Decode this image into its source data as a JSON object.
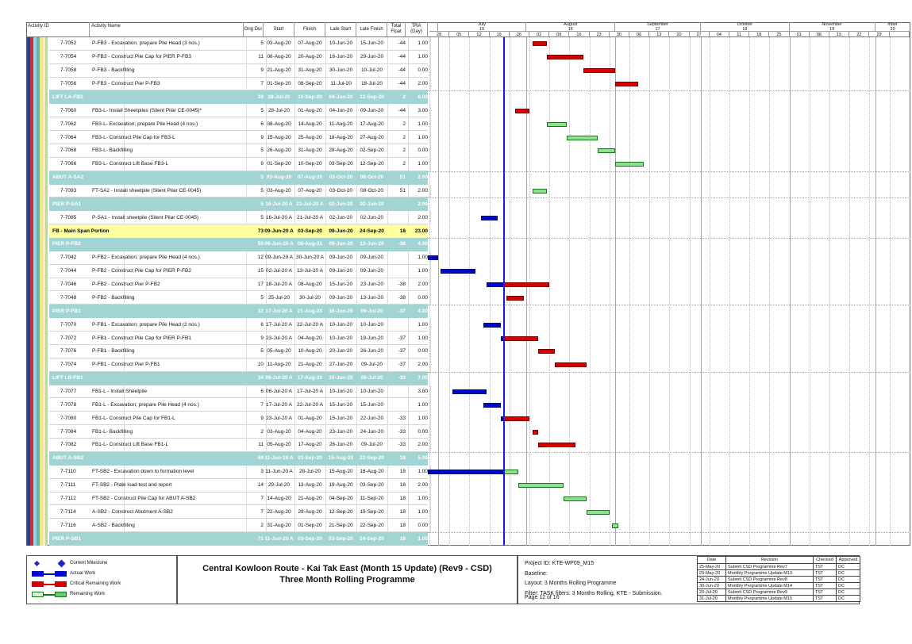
{
  "table": {
    "columns": [
      {
        "key": "id",
        "label": "Activity ID"
      },
      {
        "key": "name",
        "label": "Activity Name"
      },
      {
        "key": "dur",
        "label": "Orig Dur"
      },
      {
        "key": "start",
        "label": "Start"
      },
      {
        "key": "finish",
        "label": "Finish"
      },
      {
        "key": "ls",
        "label": "Late Start"
      },
      {
        "key": "lf",
        "label": "Late Finish"
      },
      {
        "key": "fl",
        "label": "Total\nFloat"
      },
      {
        "key": "tra",
        "label": "TRA\n(Day)"
      }
    ],
    "rows": [
      {
        "t": "task",
        "id": "7-7052",
        "name": "P-FB3 - Excavation; prepare Pile Head (3 nos.)",
        "dur": "5",
        "start": "03-Aug-20",
        "finish": "07-Aug-20",
        "ls": "10-Jun-20",
        "lf": "15-Jun-20",
        "fl": "-44",
        "tra": "1.00"
      },
      {
        "t": "task",
        "id": "7-7054",
        "name": "P-FB3 - Construct Pile Cap for PIER P-FB3",
        "dur": "11",
        "start": "08-Aug-20",
        "finish": "20-Aug-20",
        "ls": "16-Jun-20",
        "lf": "29-Jun-20",
        "fl": "-44",
        "tra": "1.00"
      },
      {
        "t": "task",
        "id": "7-7058",
        "name": "P-FB3 - Backfilling",
        "dur": "9",
        "start": "21-Aug-20",
        "finish": "31-Aug-20",
        "ls": "30-Jun-20",
        "lf": "10-Jul-20",
        "fl": "-44",
        "tra": "0.00"
      },
      {
        "t": "task",
        "id": "7-7056",
        "name": "P-FB3 - Construct Pier P-FB3",
        "dur": "7",
        "start": "01-Sep-20",
        "finish": "08-Sep-20",
        "ls": "11-Jul-20",
        "lf": "18-Jul-20",
        "fl": "-44",
        "tra": "2.00"
      },
      {
        "t": "group",
        "id": "",
        "name": "LIFT LA-FB3",
        "dur": "39",
        "start": "28-Jul-20",
        "finish": "10-Sep-20",
        "ls": "04-Jun-20",
        "lf": "12-Sep-20",
        "fl": "2",
        "tra": "6.00"
      },
      {
        "t": "task",
        "id": "7-7060",
        "name": "FB3-L- Install Sheetpiles (Silent Pilar CE-0045)*",
        "dur": "5",
        "start": "28-Jul-20",
        "finish": "01-Aug-20",
        "ls": "04-Jun-20",
        "lf": "09-Jun-20",
        "fl": "-44",
        "tra": "3.00"
      },
      {
        "t": "task",
        "id": "7-7062",
        "name": "FB3-L- Excavation; prepare Pile Head (4 nos.)",
        "dur": "6",
        "start": "08-Aug-20",
        "finish": "14-Aug-20",
        "ls": "11-Aug-20",
        "lf": "17-Aug-20",
        "fl": "2",
        "tra": "1.00"
      },
      {
        "t": "task",
        "id": "7-7064",
        "name": "FB3-L- Construct Pile Cap for FB3-L",
        "dur": "9",
        "start": "15-Aug-20",
        "finish": "25-Aug-20",
        "ls": "18-Aug-20",
        "lf": "27-Aug-20",
        "fl": "2",
        "tra": "1.00"
      },
      {
        "t": "task",
        "id": "7-7068",
        "name": "FB3-L- Backfilling",
        "dur": "5",
        "start": "26-Aug-20",
        "finish": "31-Aug-20",
        "ls": "28-Aug-20",
        "lf": "02-Sep-20",
        "fl": "2",
        "tra": "0.00"
      },
      {
        "t": "task",
        "id": "7-7066",
        "name": "FB3-L- Construct Lift Base FB3-L",
        "dur": "9",
        "start": "01-Sep-20",
        "finish": "10-Sep-20",
        "ls": "03-Sep-20",
        "lf": "12-Sep-20",
        "fl": "2",
        "tra": "1.00"
      },
      {
        "t": "group",
        "id": "",
        "name": "ABUT A-SA2",
        "dur": "5",
        "start": "03-Aug-20",
        "finish": "07-Aug-20",
        "ls": "03-Oct-20",
        "lf": "08-Oct-20",
        "fl": "51",
        "tra": "2.00"
      },
      {
        "t": "task",
        "id": "7-7093",
        "name": "FT-SA2 - Install sheetpile (Silent Pilar CE-0045)",
        "dur": "5",
        "start": "03-Aug-20",
        "finish": "07-Aug-20",
        "ls": "03-Oct-20",
        "lf": "08-Oct-20",
        "fl": "51",
        "tra": "2.00"
      },
      {
        "t": "group",
        "id": "",
        "name": "PIER P-SA1",
        "dur": "5",
        "start": "16-Jul-20 A",
        "finish": "21-Jul-20 A",
        "ls": "02-Jun-20",
        "lf": "02-Jun-20",
        "fl": "",
        "tra": "2.00"
      },
      {
        "t": "task",
        "id": "7-7085",
        "name": "P-SA1 - Install sheetpile (Silent Pilar CE-0045)",
        "dur": "5",
        "start": "16-Jul-20 A",
        "finish": "21-Jul-20 A",
        "ls": "02-Jun-20",
        "lf": "02-Jun-20",
        "fl": "",
        "tra": "2.00"
      },
      {
        "t": "summary",
        "id": "",
        "name": "FB - Main Span Portion",
        "dur": "73",
        "start": "09-Jun-20 A",
        "finish": "03-Sep-20",
        "ls": "09-Jun-20",
        "lf": "24-Sep-20",
        "fl": "18",
        "tra": "23.00"
      },
      {
        "t": "group",
        "id": "",
        "name": "PIER P-FB2",
        "dur": "50",
        "start": "09-Jun-20 A",
        "finish": "08-Aug-20",
        "ls": "09-Jun-20",
        "lf": "13-Jun-20",
        "fl": "-38",
        "tra": "4.00"
      },
      {
        "t": "task",
        "id": "7-7042",
        "name": "P-FB2 - Excavation; prepare Pile Head (4 nos.)",
        "dur": "12",
        "start": "09-Jun-20 A",
        "finish": "30-Jun-20 A",
        "ls": "09-Jun-20",
        "lf": "09-Jun-20",
        "fl": "",
        "tra": "1.00"
      },
      {
        "t": "task",
        "id": "7-7044",
        "name": "P-FB2 - Construct Pile Cap for PIER P-FB2",
        "dur": "15",
        "start": "02-Jul-20 A",
        "finish": "13-Jul-20 A",
        "ls": "09-Jun-20",
        "lf": "09-Jun-20",
        "fl": "",
        "tra": "1.00"
      },
      {
        "t": "task",
        "id": "7-7046",
        "name": "P-FB2 - Construct Pier P-FB2",
        "dur": "17",
        "start": "18-Jul-20 A",
        "finish": "08-Aug-20",
        "ls": "15-Jun-20",
        "lf": "23-Jun-20",
        "fl": "-38",
        "tra": "2.00"
      },
      {
        "t": "task",
        "id": "7-7048",
        "name": "P-FB2 - Backfilling",
        "dur": "5",
        "start": "25-Jul-20",
        "finish": "30-Jul-20",
        "ls": "09-Jun-20",
        "lf": "13-Jun-20",
        "fl": "-38",
        "tra": "0.00"
      },
      {
        "t": "group",
        "id": "",
        "name": "PIER P-FB1",
        "dur": "32",
        "start": "17-Jul-20 A",
        "finish": "21-Aug-20",
        "ls": "10-Jun-20",
        "lf": "09-Jul-20",
        "fl": "-37",
        "tra": "4.00"
      },
      {
        "t": "task",
        "id": "7-7070",
        "name": "P-FB1 - Excavation; prepare Pile Head (2 nos.)",
        "dur": "6",
        "start": "17-Jul-20 A",
        "finish": "22-Jul-20 A",
        "ls": "10-Jun-20",
        "lf": "10-Jun-20",
        "fl": "",
        "tra": "1.00"
      },
      {
        "t": "task",
        "id": "7-7072",
        "name": "P-FB1 - Construct Pile Cap for PIER P-FB1",
        "dur": "9",
        "start": "23-Jul-20 A",
        "finish": "04-Aug-20",
        "ls": "10-Jun-20",
        "lf": "19-Jun-20",
        "fl": "-37",
        "tra": "1.00"
      },
      {
        "t": "task",
        "id": "7-7076",
        "name": "P-FB1 - Backfilling",
        "dur": "5",
        "start": "05-Aug-20",
        "finish": "10-Aug-20",
        "ls": "20-Jun-20",
        "lf": "26-Jun-20",
        "fl": "-37",
        "tra": "0.00"
      },
      {
        "t": "task",
        "id": "7-7074",
        "name": "P-FB1 - Construct Pier P-FB1",
        "dur": "10",
        "start": "11-Aug-20",
        "finish": "21-Aug-20",
        "ls": "27-Jun-20",
        "lf": "09-Jul-20",
        "fl": "-37",
        "tra": "2.00"
      },
      {
        "t": "group",
        "id": "",
        "name": "LIFT LB-FB1",
        "dur": "34",
        "start": "06-Jul-20 A",
        "finish": "17-Aug-20",
        "ls": "10-Jun-20",
        "lf": "09-Jul-20",
        "fl": "-33",
        "tra": "7.00"
      },
      {
        "t": "task",
        "id": "7-7077",
        "name": "FB1-L - Install Sheetpile",
        "dur": "6",
        "start": "06-Jul-20 A",
        "finish": "17-Jul-20 A",
        "ls": "10-Jun-20",
        "lf": "10-Jun-20",
        "fl": "",
        "tra": "3.00"
      },
      {
        "t": "task",
        "id": "7-7078",
        "name": "FB1-L - Excavation; prepare Pile Head (4 nos.)",
        "dur": "7",
        "start": "17-Jul-20 A",
        "finish": "22-Jul-20 A",
        "ls": "15-Jun-20",
        "lf": "15-Jun-20",
        "fl": "",
        "tra": "1.00"
      },
      {
        "t": "task",
        "id": "7-7080",
        "name": "FB1-L- Construct Pile Cap for FB1-L",
        "dur": "9",
        "start": "23-Jul-20 A",
        "finish": "01-Aug-20",
        "ls": "15-Jun-20",
        "lf": "22-Jun-20",
        "fl": "-33",
        "tra": "1.00"
      },
      {
        "t": "task",
        "id": "7-7084",
        "name": "FB1-L- Backfilling",
        "dur": "2",
        "start": "03-Aug-20",
        "finish": "04-Aug-20",
        "ls": "23-Jun-20",
        "lf": "24-Jun-20",
        "fl": "-33",
        "tra": "0.00"
      },
      {
        "t": "task",
        "id": "7-7082",
        "name": "FB1-L- Construct Lift Base FB1-L",
        "dur": "11",
        "start": "05-Aug-20",
        "finish": "17-Aug-20",
        "ls": "26-Jun-20",
        "lf": "09-Jul-20",
        "fl": "-33",
        "tra": "2.00"
      },
      {
        "t": "group",
        "id": "",
        "name": "ABUT A-SB2",
        "dur": "69",
        "start": "11-Jun-20 A",
        "finish": "01-Sep-20",
        "ls": "15-Aug-20",
        "lf": "22-Sep-20",
        "fl": "18",
        "tra": "5.00"
      },
      {
        "t": "task",
        "id": "7-7110",
        "name": "FT-SB2 - Excavation down to formation level",
        "dur": "3",
        "start": "11-Jun-20 A",
        "finish": "28-Jul-20",
        "ls": "15-Aug-20",
        "lf": "18-Aug-20",
        "fl": "18",
        "tra": "1.00"
      },
      {
        "t": "task",
        "id": "7-7111",
        "name": "FT-SB2 - Plate load test and report",
        "dur": "14",
        "start": "29-Jul-20",
        "finish": "13-Aug-20",
        "ls": "19-Aug-20",
        "lf": "03-Sep-20",
        "fl": "18",
        "tra": "2.00"
      },
      {
        "t": "task",
        "id": "7-7112",
        "name": "FT-SB2 - Construct Pile Cap for ABUT A-SB2",
        "dur": "7",
        "start": "14-Aug-20",
        "finish": "21-Aug-20",
        "ls": "04-Sep-20",
        "lf": "11-Sep-20",
        "fl": "18",
        "tra": "1.00"
      },
      {
        "t": "task",
        "id": "7-7114",
        "name": "A-SB2 - Construct Abutment A-SB2",
        "dur": "7",
        "start": "22-Aug-20",
        "finish": "29-Aug-20",
        "ls": "12-Sep-20",
        "lf": "19-Sep-20",
        "fl": "18",
        "tra": "1.00"
      },
      {
        "t": "task",
        "id": "7-7116",
        "name": "A-SB2 - Backfilling",
        "dur": "2",
        "start": "31-Aug-20",
        "finish": "01-Sep-20",
        "ls": "21-Sep-20",
        "lf": "22-Sep-20",
        "fl": "18",
        "tra": "0.00"
      },
      {
        "t": "group",
        "id": "",
        "name": "PIER P-SB1",
        "dur": "71",
        "start": "11-Jun-20 A",
        "finish": "03-Sep-20",
        "ls": "03-Sep-20",
        "lf": "24-Sep-20",
        "fl": "18",
        "tra": "1.00"
      }
    ]
  },
  "timeline": {
    "window_start": "28-Jun-20",
    "data_date": "24-Jul-20",
    "months": [
      {
        "name": "",
        "num": ""
      },
      {
        "name": "July",
        "num": "15"
      },
      {
        "name": "August",
        "num": "16"
      },
      {
        "name": "September",
        "num": "17"
      },
      {
        "name": "October",
        "num": "18"
      },
      {
        "name": "November",
        "num": "19"
      },
      {
        "name": "mber",
        "num": "20"
      }
    ],
    "weeks": [
      "28",
      "05",
      "12",
      "19",
      "26",
      "02",
      "09",
      "16",
      "23",
      "30",
      "06",
      "13",
      "20",
      "27",
      "04",
      "11",
      "18",
      "25",
      "01",
      "08",
      "15",
      "22",
      "29",
      ""
    ]
  },
  "legend": [
    {
      "type": "milestone",
      "label": "Current Milestone"
    },
    {
      "type": "actual",
      "label": "Actual Work"
    },
    {
      "type": "critical",
      "label": "Critical Remaining Work"
    },
    {
      "type": "remaining",
      "label": "Remaining Work"
    }
  ],
  "title": {
    "line1": "Central Kowloon Route - Kai Tak East (Month 15 Update) (Rev9 - CSD)",
    "line2": "Three Month Rolling Programme"
  },
  "info": {
    "project_id": "Project ID: KTE-WP09_M15",
    "baseline": "Baseline:",
    "layout": "Layout: 3 Months Rolling Programme",
    "filter": "Filter: TASK filters: 3 Months Rolling, KTE - Submission.",
    "page": "Page 12 of 16"
  },
  "revisions": {
    "headers": [
      "Date",
      "Revision",
      "Checked",
      "Approved"
    ],
    "rows": [
      [
        "25-May-20",
        "Submit CSD Programme Rev7",
        "TST",
        "DC"
      ],
      [
        "29-May-20",
        "Monthly Programme Update M13",
        "TST",
        "DC"
      ],
      [
        "24-Jun-20",
        "Submit CSD Programme Rev8",
        "TST",
        "DC"
      ],
      [
        "30-Jun-20",
        "Monthly Programme Update M14",
        "TST",
        "DC"
      ],
      [
        "20-Jul-20",
        "Submit CSD Programme Rev9",
        "TST",
        "DC"
      ],
      [
        "31-Jul-20",
        "Monthly Programme Update M15",
        "TST",
        "DC"
      ]
    ]
  },
  "colors": {
    "group_band": "#a3d4d4",
    "summary_band": "#ffff9e",
    "actual_bar": "#0008cc",
    "critical_bar": "#d80000",
    "remaining_bar": "#8de28d",
    "data_date_line": "#1a1ae6"
  }
}
